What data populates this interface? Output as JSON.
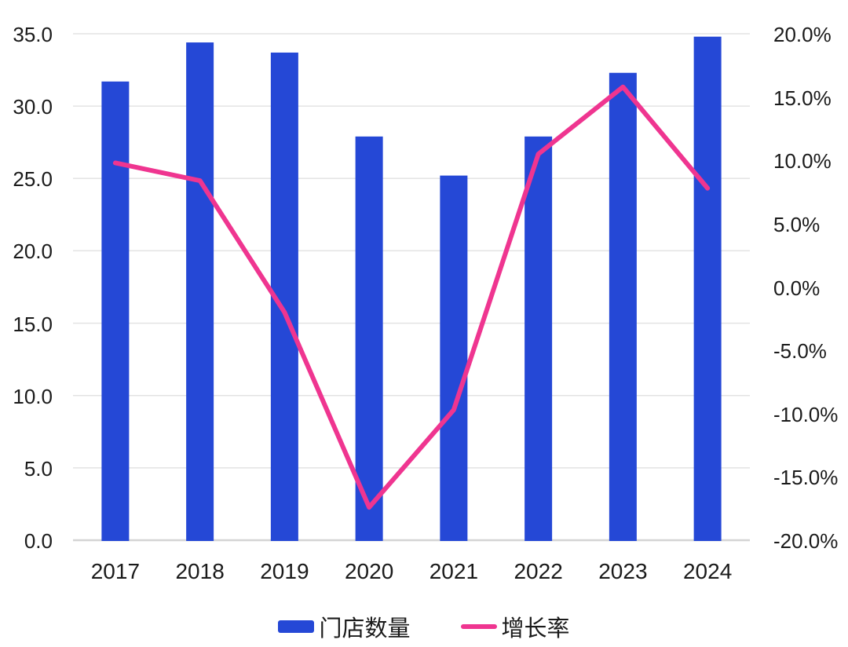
{
  "chart_data": {
    "type": "bar",
    "subtype": "combo-bar-line-dual-axis",
    "categories": [
      "2017",
      "2018",
      "2019",
      "2020",
      "2021",
      "2022",
      "2023",
      "2024"
    ],
    "series": [
      {
        "name": "门店数量",
        "kind": "bar",
        "axis": "left",
        "color": "#2548d6",
        "values": [
          31.7,
          34.4,
          33.7,
          27.9,
          25.2,
          27.9,
          32.3,
          34.8
        ]
      },
      {
        "name": "增长率",
        "kind": "line",
        "axis": "right",
        "color": "#ef3590",
        "unit": "%",
        "values": [
          9.8,
          8.4,
          -2.0,
          -17.4,
          -9.7,
          10.5,
          15.8,
          7.8
        ]
      }
    ],
    "left_axis": {
      "min": 0,
      "max": 35,
      "step": 5,
      "ticks_top_to_bottom": [
        "35.0",
        "30.0",
        "25.0",
        "20.0",
        "15.0",
        "10.0",
        "5.0",
        "0.0"
      ]
    },
    "right_axis": {
      "min": -20,
      "max": 20,
      "step": 5,
      "ticks_top_to_bottom": [
        "20.0%",
        "15.0%",
        "10.0%",
        "5.0%",
        "0.0%",
        "-5.0%",
        "-10.0%",
        "-15.0%",
        "-20.0%"
      ]
    },
    "grid": "horizontal lines at left-axis ticks only",
    "legend_position": "bottom-center",
    "title": "",
    "xlabel": "",
    "ylabel": ""
  },
  "legend": {
    "items": [
      {
        "label": "门店数量",
        "swatch": "bar",
        "color": "#2548d6"
      },
      {
        "label": "增长率",
        "swatch": "line",
        "color": "#ef3590"
      }
    ]
  },
  "colors": {
    "bar": "#2548d6",
    "line": "#ef3590",
    "grid": "#e3e3e3",
    "axis_line": "#d4d4d4",
    "text": "#1a1a1a",
    "background": "#ffffff"
  }
}
